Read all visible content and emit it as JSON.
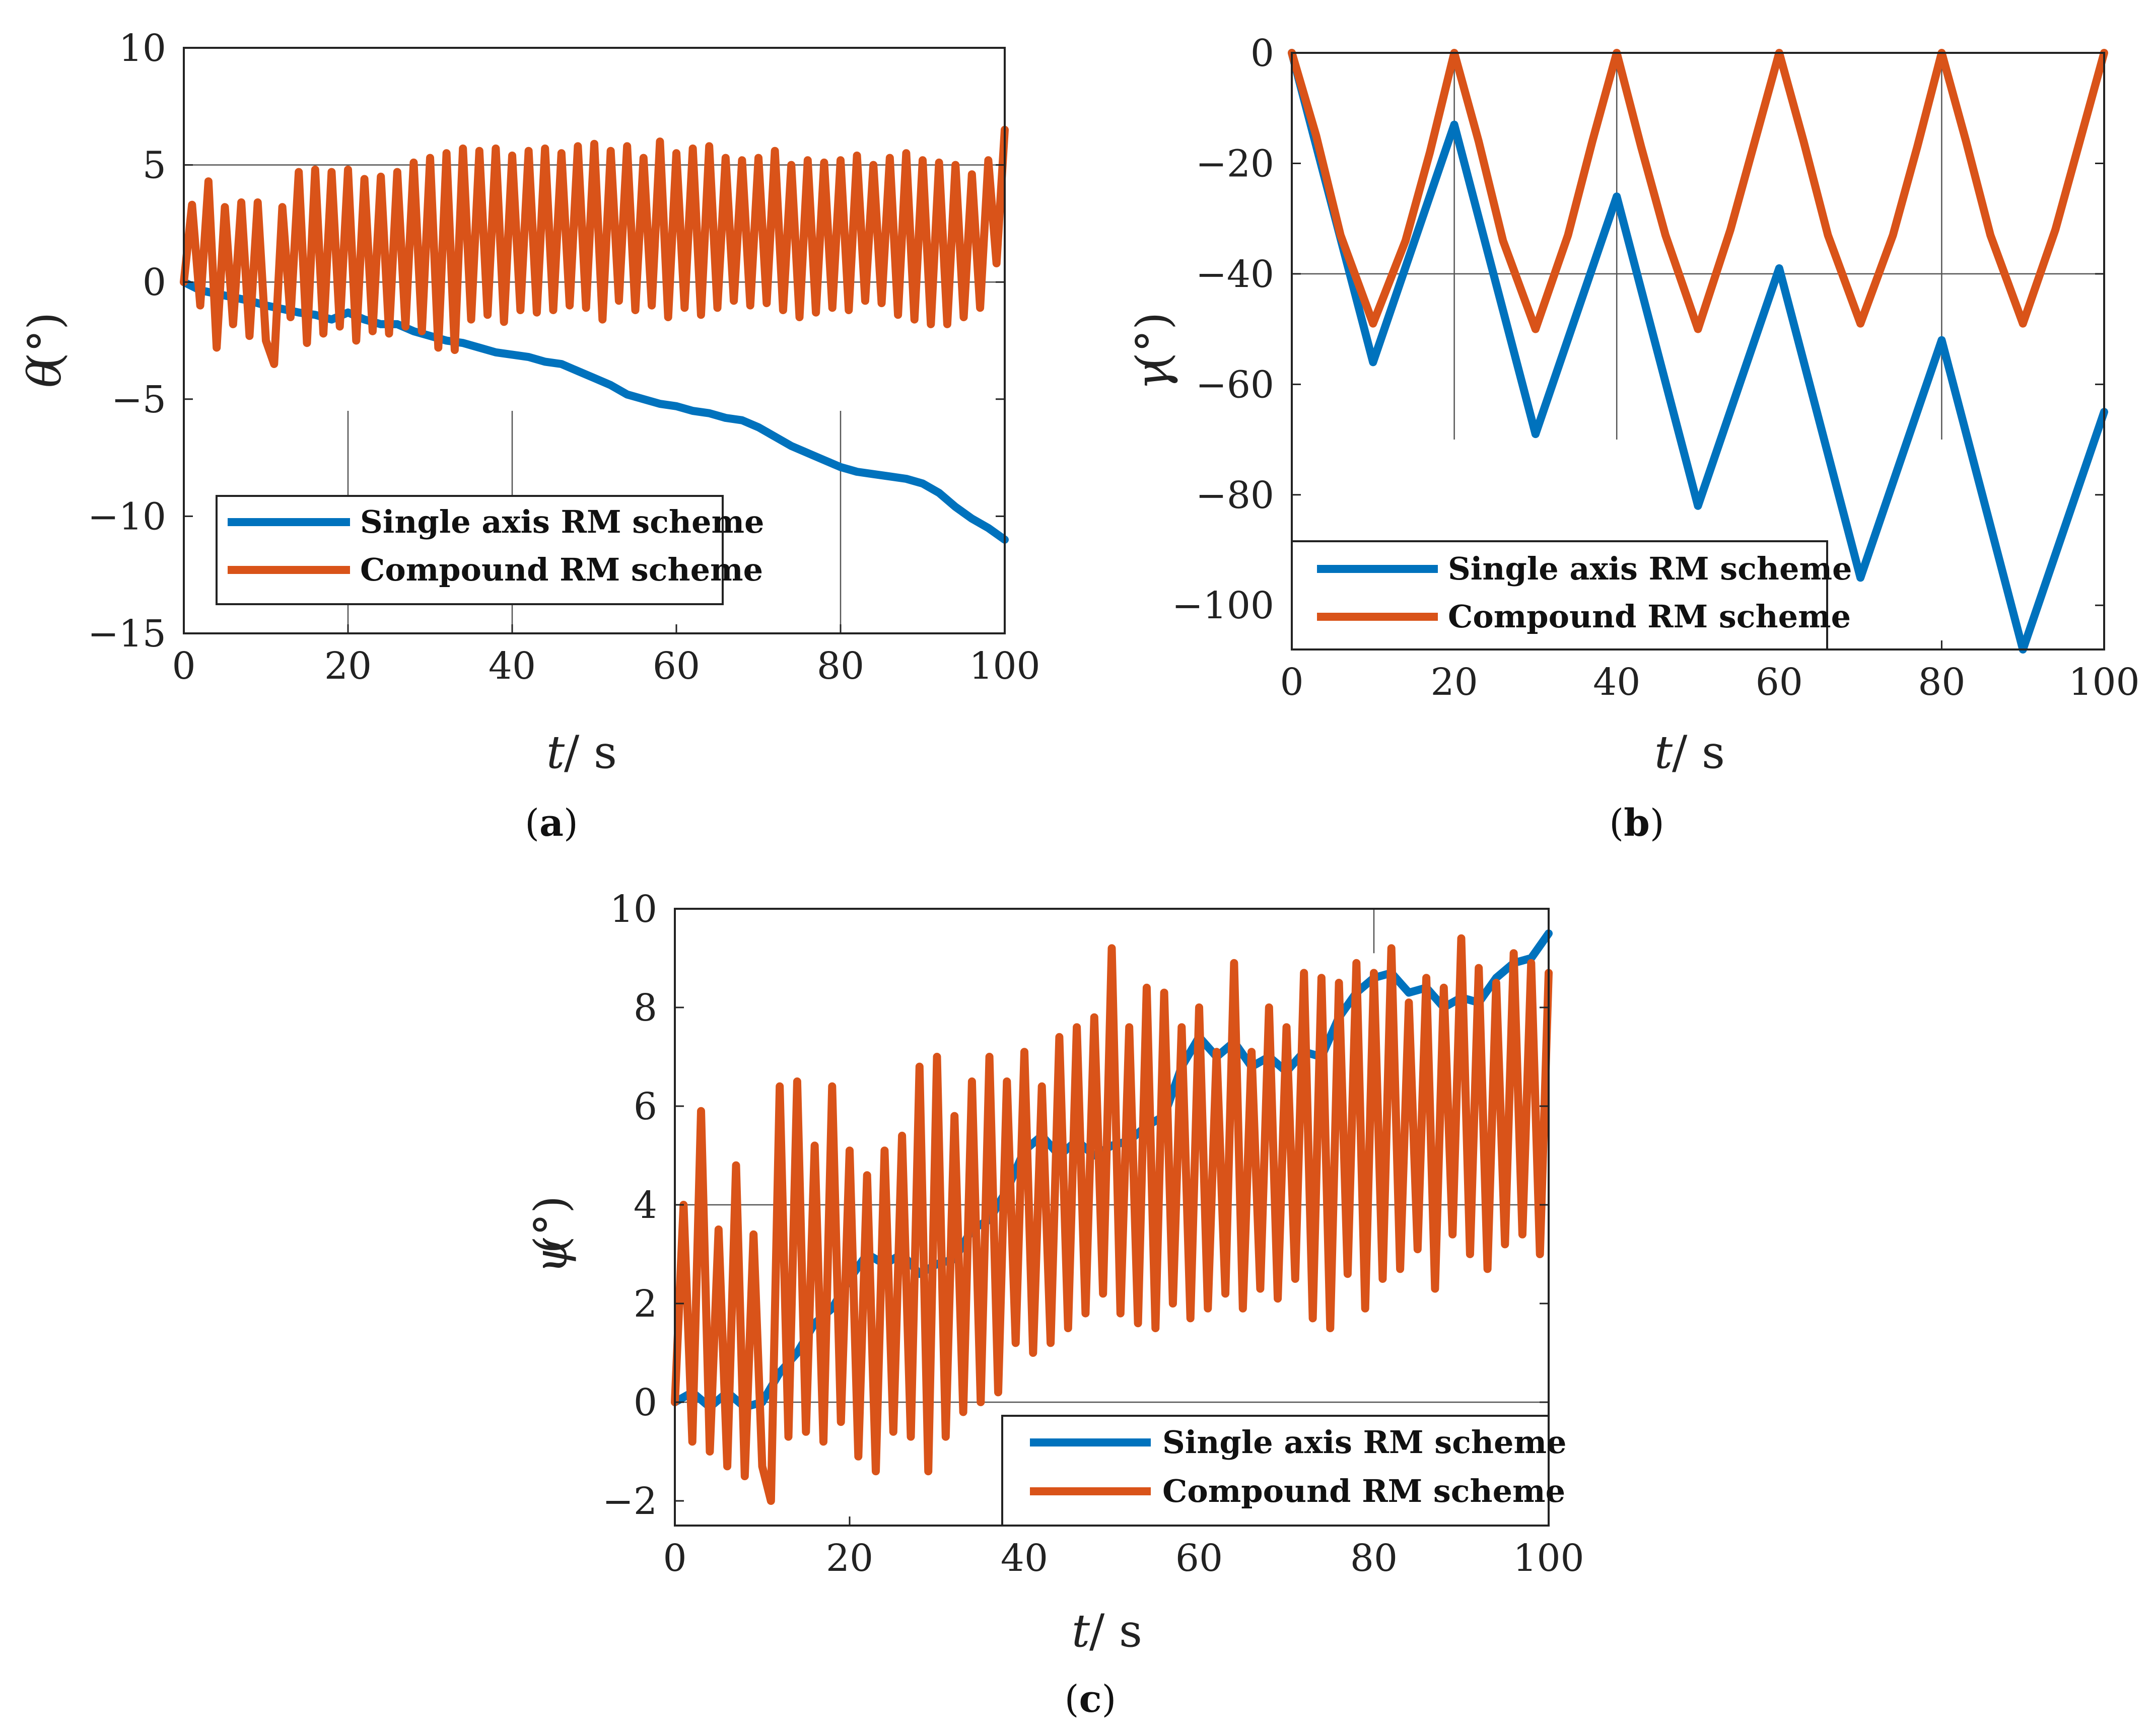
{
  "colors": {
    "single": "#0072BD",
    "compound": "#D95319"
  },
  "chart_data": [
    {
      "id": "a",
      "type": "line",
      "caption_letter": "a",
      "ylabel_symbol": "θ",
      "ylabel_unit": "(°)",
      "xlabel_symbol": "t",
      "xlabel_unit": " / s",
      "xlim": [
        0,
        100
      ],
      "ylim": [
        -15,
        10
      ],
      "xticks": [
        0,
        20,
        40,
        60,
        80,
        100
      ],
      "yticks": [
        -15,
        -10,
        -5,
        0,
        5,
        10
      ],
      "ytick_labels": [
        "−15",
        "−10",
        "−5",
        "0",
        "5",
        "10"
      ],
      "grid_lines": [
        {
          "orient": "h",
          "value": 0,
          "from": 0,
          "to": 100
        },
        {
          "orient": "h",
          "value": 5,
          "from": 0,
          "to": 100
        },
        {
          "orient": "v",
          "value": 20,
          "from": -15,
          "to": -5.5
        },
        {
          "orient": "v",
          "value": 40,
          "from": -15,
          "to": -5.5
        },
        {
          "orient": "v",
          "value": 80,
          "from": -15,
          "to": -5.5
        }
      ],
      "legend": {
        "entries": [
          "Single axis RM scheme",
          "Compound RM scheme"
        ],
        "position": "lower-left"
      },
      "series": [
        {
          "name": "Single axis RM scheme",
          "color_key": "single",
          "x": [
            0,
            2,
            4,
            6,
            8,
            10,
            12,
            14,
            16,
            18,
            20,
            22,
            24,
            26,
            28,
            30,
            32,
            34,
            36,
            38,
            40,
            42,
            44,
            46,
            48,
            50,
            52,
            54,
            56,
            58,
            60,
            62,
            64,
            66,
            68,
            70,
            72,
            74,
            76,
            78,
            80,
            82,
            84,
            86,
            88,
            90,
            92,
            94,
            96,
            98,
            100
          ],
          "values": [
            0,
            -0.35,
            -0.5,
            -0.65,
            -0.8,
            -1.0,
            -1.15,
            -1.3,
            -1.4,
            -1.6,
            -1.3,
            -1.6,
            -1.8,
            -1.8,
            -2.1,
            -2.3,
            -2.5,
            -2.6,
            -2.8,
            -3.0,
            -3.1,
            -3.2,
            -3.4,
            -3.5,
            -3.8,
            -4.1,
            -4.4,
            -4.8,
            -5.0,
            -5.2,
            -5.3,
            -5.5,
            -5.6,
            -5.8,
            -5.9,
            -6.2,
            -6.6,
            -7.0,
            -7.3,
            -7.6,
            -7.9,
            -8.1,
            -8.2,
            -8.3,
            -8.4,
            -8.6,
            -9.0,
            -9.6,
            -10.1,
            -10.5,
            -11.0
          ]
        },
        {
          "name": "Compound RM scheme",
          "color_key": "compound",
          "x": [
            0,
            1,
            2,
            3,
            4,
            5,
            6,
            7,
            8,
            9,
            10,
            11,
            12,
            13,
            14,
            15,
            16,
            17,
            18,
            19,
            20,
            21,
            22,
            23,
            24,
            25,
            26,
            27,
            28,
            29,
            30,
            31,
            32,
            33,
            34,
            35,
            36,
            37,
            38,
            39,
            40,
            41,
            42,
            43,
            44,
            45,
            46,
            47,
            48,
            49,
            50,
            51,
            52,
            53,
            54,
            55,
            56,
            57,
            58,
            59,
            60,
            61,
            62,
            63,
            64,
            65,
            66,
            67,
            68,
            69,
            70,
            71,
            72,
            73,
            74,
            75,
            76,
            77,
            78,
            79,
            80,
            81,
            82,
            83,
            84,
            85,
            86,
            87,
            88,
            89,
            90,
            91,
            92,
            93,
            94,
            95,
            96,
            97,
            98,
            99,
            100
          ],
          "values": [
            0,
            3.3,
            -1.0,
            4.3,
            -2.8,
            3.2,
            -1.8,
            3.4,
            -2.3,
            3.4,
            -2.5,
            -3.5,
            3.2,
            -1.5,
            4.7,
            -2.6,
            4.8,
            -2.2,
            4.7,
            -1.9,
            4.8,
            -2.5,
            4.4,
            -2.1,
            4.5,
            -2.2,
            4.7,
            -1.9,
            5.1,
            -2.1,
            5.3,
            -2.8,
            5.5,
            -2.9,
            5.7,
            -1.6,
            5.6,
            -1.4,
            5.7,
            -1.7,
            5.4,
            -1.2,
            5.6,
            -1.3,
            5.7,
            -1.2,
            5.5,
            -1.0,
            5.8,
            -1.1,
            5.9,
            -1.6,
            5.6,
            -0.8,
            5.8,
            -1.2,
            5.3,
            -1.0,
            6.0,
            -1.5,
            5.5,
            -1.1,
            5.7,
            -1.4,
            5.8,
            -1.1,
            5.3,
            -0.8,
            5.2,
            -1.0,
            5.3,
            -0.9,
            5.6,
            -1.2,
            5.0,
            -1.5,
            5.2,
            -1.3,
            5.1,
            -1.1,
            5.2,
            -1.2,
            5.4,
            -0.8,
            5.0,
            -0.9,
            5.3,
            -1.4,
            5.5,
            -1.6,
            5.2,
            -1.8,
            5.1,
            -1.8,
            5.0,
            -1.5,
            4.6,
            -1.1,
            5.2,
            0.8,
            6.5
          ]
        }
      ]
    },
    {
      "id": "b",
      "type": "line",
      "caption_letter": "b",
      "ylabel_symbol": "γ",
      "ylabel_unit": "(°)",
      "xlabel_symbol": "t",
      "xlabel_unit": " / s",
      "xlim": [
        0,
        100
      ],
      "ylim": [
        -108,
        0
      ],
      "xticks": [
        0,
        20,
        40,
        60,
        80,
        100
      ],
      "yticks": [
        -100,
        -80,
        -60,
        -40,
        -20,
        0
      ],
      "ytick_labels": [
        "−100",
        "−80",
        "−60",
        "−40",
        "−20",
        "0"
      ],
      "grid_lines": [
        {
          "orient": "h",
          "value": 0,
          "from": 0,
          "to": 100
        },
        {
          "orient": "h",
          "value": -40,
          "from": 0,
          "to": 100
        },
        {
          "orient": "v",
          "value": 20,
          "from": -70,
          "to": 0
        },
        {
          "orient": "v",
          "value": 40,
          "from": -70,
          "to": 0
        },
        {
          "orient": "v",
          "value": 80,
          "from": -70,
          "to": 0
        }
      ],
      "legend": {
        "entries": [
          "Single axis RM scheme",
          "Compound RM scheme"
        ],
        "position": "lower-left"
      },
      "series": [
        {
          "name": "Single axis RM scheme",
          "color_key": "single",
          "x": [
            0,
            10,
            20,
            30,
            40,
            50,
            60,
            70,
            80,
            90,
            100
          ],
          "values": [
            0,
            -56,
            -13,
            -69,
            -26,
            -82,
            -39,
            -95,
            -52,
            -108,
            -65
          ]
        },
        {
          "name": "Compound RM scheme",
          "color_key": "compound",
          "x": [
            0,
            3,
            6,
            10,
            14,
            17,
            20,
            23,
            26,
            30,
            34,
            37,
            40,
            43,
            46,
            50,
            54,
            57,
            60,
            63,
            66,
            70,
            74,
            77,
            80,
            83,
            86,
            90,
            94,
            97,
            100
          ],
          "values": [
            0,
            -15,
            -33,
            -49,
            -34,
            -18,
            0,
            -16,
            -34,
            -50,
            -33,
            -16,
            0,
            -17,
            -33,
            -50,
            -32,
            -16,
            0,
            -16,
            -33,
            -49,
            -33,
            -17,
            0,
            -16,
            -33,
            -49,
            -32,
            -16,
            0
          ]
        }
      ]
    },
    {
      "id": "c",
      "type": "line",
      "caption_letter": "c",
      "ylabel_symbol": "ψ",
      "ylabel_unit": "(°)",
      "xlabel_symbol": "t",
      "xlabel_unit": " / s",
      "xlim": [
        0,
        100
      ],
      "ylim": [
        -2.5,
        10
      ],
      "xticks": [
        0,
        20,
        40,
        60,
        80,
        100
      ],
      "yticks": [
        -2,
        0,
        2,
        4,
        6,
        8,
        10
      ],
      "ytick_labels": [
        "−2",
        "0",
        "2",
        "4",
        "6",
        "8",
        "10"
      ],
      "grid_lines": [
        {
          "orient": "h",
          "value": 0,
          "from": 0,
          "to": 100
        },
        {
          "orient": "h",
          "value": 4,
          "from": 0,
          "to": 100
        },
        {
          "orient": "v",
          "value": 80,
          "from": 9.1,
          "to": 10
        }
      ],
      "legend": {
        "entries": [
          "Single axis RM scheme",
          "Compound RM scheme"
        ],
        "position": "lower-right"
      },
      "series": [
        {
          "name": "Single axis RM scheme",
          "color_key": "single",
          "x": [
            0,
            2,
            4,
            6,
            8,
            10,
            12,
            14,
            16,
            18,
            20,
            22,
            24,
            26,
            28,
            30,
            32,
            34,
            36,
            38,
            40,
            42,
            44,
            46,
            48,
            50,
            52,
            54,
            56,
            58,
            60,
            62,
            64,
            66,
            68,
            70,
            72,
            74,
            76,
            78,
            80,
            82,
            84,
            86,
            88,
            90,
            92,
            94,
            96,
            98,
            100
          ],
          "values": [
            0,
            0.2,
            -0.1,
            0.2,
            -0.1,
            0,
            0.6,
            1.0,
            1.6,
            1.9,
            2.5,
            3.0,
            2.8,
            3.0,
            2.6,
            2.8,
            2.9,
            3.5,
            3.7,
            4.3,
            5.1,
            5.4,
            5.0,
            5.3,
            5.0,
            5.2,
            5.3,
            5.6,
            5.8,
            6.8,
            7.4,
            7.0,
            7.3,
            6.8,
            7.0,
            6.7,
            7.1,
            7.0,
            7.8,
            8.3,
            8.6,
            8.7,
            8.3,
            8.4,
            8.0,
            8.2,
            8.1,
            8.6,
            8.9,
            9.0,
            9.5
          ]
        },
        {
          "name": "Compound RM scheme",
          "color_key": "compound",
          "x": [
            0,
            1,
            2,
            3,
            4,
            5,
            6,
            7,
            8,
            9,
            10,
            11,
            12,
            13,
            14,
            15,
            16,
            17,
            18,
            19,
            20,
            21,
            22,
            23,
            24,
            25,
            26,
            27,
            28,
            29,
            30,
            31,
            32,
            33,
            34,
            35,
            36,
            37,
            38,
            39,
            40,
            41,
            42,
            43,
            44,
            45,
            46,
            47,
            48,
            49,
            50,
            51,
            52,
            53,
            54,
            55,
            56,
            57,
            58,
            59,
            60,
            61,
            62,
            63,
            64,
            65,
            66,
            67,
            68,
            69,
            70,
            71,
            72,
            73,
            74,
            75,
            76,
            77,
            78,
            79,
            80,
            81,
            82,
            83,
            84,
            85,
            86,
            87,
            88,
            89,
            90,
            91,
            92,
            93,
            94,
            95,
            96,
            97,
            98,
            99,
            100
          ],
          "values": [
            0,
            4.0,
            -0.8,
            5.9,
            -1.0,
            3.5,
            -1.3,
            4.8,
            -1.5,
            3.4,
            -1.3,
            -2.0,
            6.4,
            -0.7,
            6.5,
            -0.6,
            5.2,
            -0.8,
            6.4,
            -0.4,
            5.1,
            -1.1,
            4.6,
            -1.4,
            5.1,
            -0.6,
            5.4,
            -0.7,
            6.8,
            -1.4,
            7.0,
            -0.7,
            5.8,
            -0.2,
            6.5,
            0,
            7.0,
            0.2,
            6.5,
            1.2,
            7.1,
            1.0,
            6.4,
            1.2,
            7.4,
            1.5,
            7.6,
            1.8,
            7.8,
            2.2,
            9.2,
            1.8,
            7.6,
            1.6,
            8.4,
            1.5,
            8.3,
            2.0,
            7.6,
            1.7,
            8.0,
            1.9,
            7.1,
            2.2,
            8.9,
            1.9,
            7.1,
            2.3,
            8.0,
            2.1,
            7.6,
            2.5,
            8.7,
            1.7,
            8.6,
            1.5,
            8.5,
            2.6,
            8.9,
            1.9,
            8.7,
            2.5,
            9.2,
            2.7,
            8.1,
            3.1,
            8.6,
            2.3,
            8.4,
            3.4,
            9.4,
            3.0,
            8.8,
            2.7,
            8.5,
            3.2,
            9.1,
            3.4,
            8.9,
            3.0,
            8.7
          ]
        }
      ]
    }
  ]
}
